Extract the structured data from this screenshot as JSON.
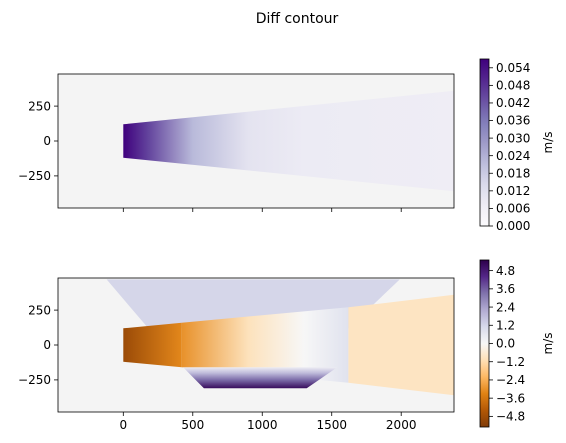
{
  "chart_data": {
    "title": "Diff contour",
    "type": "heatmap",
    "subplots": [
      {
        "name": "top",
        "xlim": [
          -470,
          2380
        ],
        "ylim": [
          -480,
          480
        ],
        "xticks": [
          0,
          500,
          1000,
          1500,
          2000
        ],
        "yticks": [
          -250,
          0,
          250
        ],
        "ytick_labels": [
          "−250",
          "0",
          "250"
        ],
        "show_x_tick_labels": false,
        "colormap": "Purples",
        "colorbar": {
          "label": "m/s",
          "range": [
            0.0,
            0.057
          ],
          "ticks": [
            0.0,
            0.006,
            0.012,
            0.018,
            0.024,
            0.03,
            0.036,
            0.042,
            0.048,
            0.054
          ],
          "tick_labels": [
            "0.000",
            "0.006",
            "0.012",
            "0.018",
            "0.024",
            "0.030",
            "0.036",
            "0.042",
            "0.048",
            "0.054"
          ]
        },
        "regions": [
          {
            "name": "wedge",
            "polygon": [
              [
                0,
                -120
              ],
              [
                0,
                120
              ],
              [
                2380,
                360
              ],
              [
                2380,
                -360
              ]
            ],
            "x_gradient": [
              [
                0,
                0.057
              ],
              [
                180,
                0.045
              ],
              [
                500,
                0.022
              ],
              [
                900,
                0.011
              ],
              [
                1300,
                0.008
              ],
              [
                2380,
                0.007
              ]
            ]
          }
        ]
      },
      {
        "name": "bottom",
        "xlim": [
          -470,
          2380
        ],
        "ylim": [
          -480,
          480
        ],
        "xticks": [
          0,
          500,
          1000,
          1500,
          2000
        ],
        "xtick_labels": [
          "0",
          "500",
          "1000",
          "1500",
          "2000"
        ],
        "yticks": [
          -250,
          0,
          250
        ],
        "ytick_labels": [
          "−250",
          "0",
          "250"
        ],
        "show_x_tick_labels": true,
        "colormap": "PuOr",
        "colorbar": {
          "label": "m/s",
          "range": [
            -5.5,
            5.5
          ],
          "ticks": [
            -4.8,
            -3.6,
            -2.4,
            -1.2,
            0.0,
            1.2,
            2.4,
            3.6,
            4.8
          ],
          "tick_labels": [
            "−4.8",
            "−3.6",
            "−2.4",
            "−1.2",
            "0.0",
            "1.2",
            "2.4",
            "3.6",
            "4.8"
          ]
        },
        "regions": [
          {
            "name": "upper-trapezoid",
            "polygon": [
              [
                -120,
                470
              ],
              [
                1990,
                470
              ],
              [
                1620,
                120
              ],
              [
                180,
                120
              ]
            ],
            "value": 1.2
          },
          {
            "name": "left-wedge",
            "polygon": [
              [
                0,
                -120
              ],
              [
                0,
                120
              ],
              [
                420,
                160
              ],
              [
                420,
                -160
              ]
            ],
            "x_gradient": [
              [
                0,
                -4.9
              ],
              [
                420,
                -3.2
              ]
            ]
          },
          {
            "name": "middle-band",
            "polygon": [
              [
                420,
                -160
              ],
              [
                420,
                160
              ],
              [
                1620,
                270
              ],
              [
                1620,
                -270
              ]
            ],
            "x_gradient": [
              [
                420,
                -3.0
              ],
              [
                900,
                -1.0
              ],
              [
                1300,
                0.0
              ],
              [
                1620,
                0.8
              ]
            ]
          },
          {
            "name": "right-wedge",
            "polygon": [
              [
                1620,
                -270
              ],
              [
                1620,
                270
              ],
              [
                2380,
                360
              ],
              [
                2380,
                -360
              ]
            ],
            "value": -0.9
          },
          {
            "name": "lower-trapezoid",
            "polygon": [
              [
                430,
                -160
              ],
              [
                1540,
                -160
              ],
              [
                1320,
                -310
              ],
              [
                580,
                -310
              ]
            ],
            "y_gradient": [
              [
                -160,
                0.4
              ],
              [
                -200,
                1.8
              ],
              [
                -250,
                3.4
              ],
              [
                -310,
                5.2
              ]
            ]
          }
        ]
      }
    ]
  }
}
